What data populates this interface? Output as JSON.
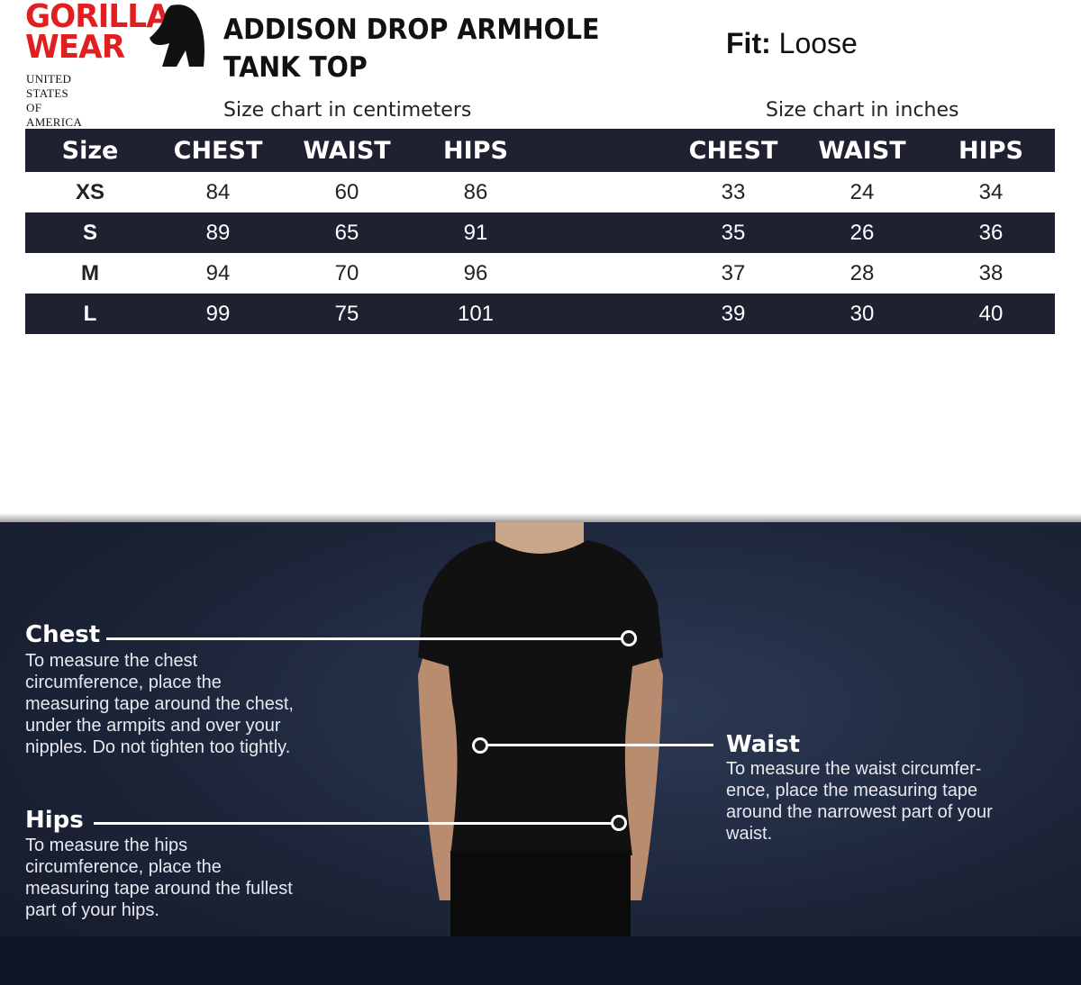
{
  "brand": {
    "name_line1": "GORILLA",
    "name_line2": "WEAR",
    "subtitle": "UNITED STATES OF AMERICA",
    "color": "#e02020"
  },
  "product": {
    "title_line1": "ADDISON DROP ARMHOLE",
    "title_line2": "TANK TOP",
    "fit_label": "Fit:",
    "fit_value": "Loose"
  },
  "cm_table": {
    "caption": "Size chart in centimeters",
    "headers": [
      "Size",
      "CHEST",
      "WAIST",
      "HIPS"
    ],
    "rows": [
      [
        "XS",
        "84",
        "60",
        "86"
      ],
      [
        "S",
        "89",
        "65",
        "91"
      ],
      [
        "M",
        "94",
        "70",
        "96"
      ],
      [
        "L",
        "99",
        "75",
        "101"
      ]
    ]
  },
  "in_table": {
    "caption": "Size chart in inches",
    "headers": [
      "CHEST",
      "WAIST",
      "HIPS"
    ],
    "rows": [
      [
        "33",
        "24",
        "34"
      ],
      [
        "35",
        "26",
        "36"
      ],
      [
        "37",
        "28",
        "38"
      ],
      [
        "39",
        "30",
        "40"
      ]
    ]
  },
  "guide": {
    "chest": {
      "label": "Chest",
      "text": [
        "To measure the chest",
        "circumference, place the",
        "measuring tape around the chest,",
        "under the armpits and over your",
        "nipples. Do not tighten too tightly."
      ]
    },
    "waist": {
      "label": "Waist",
      "text": [
        "To measure the waist circumfer-",
        "ence, place the measuring tape",
        "around the narrowest part of your",
        "waist."
      ]
    },
    "hips": {
      "label": "Hips",
      "text": [
        "To measure the hips",
        "circumference, place the",
        "measuring tape around the fullest",
        "part of your hips."
      ]
    }
  },
  "colors": {
    "table_dark": "#1f2130",
    "background_navy": "#1c2438"
  }
}
